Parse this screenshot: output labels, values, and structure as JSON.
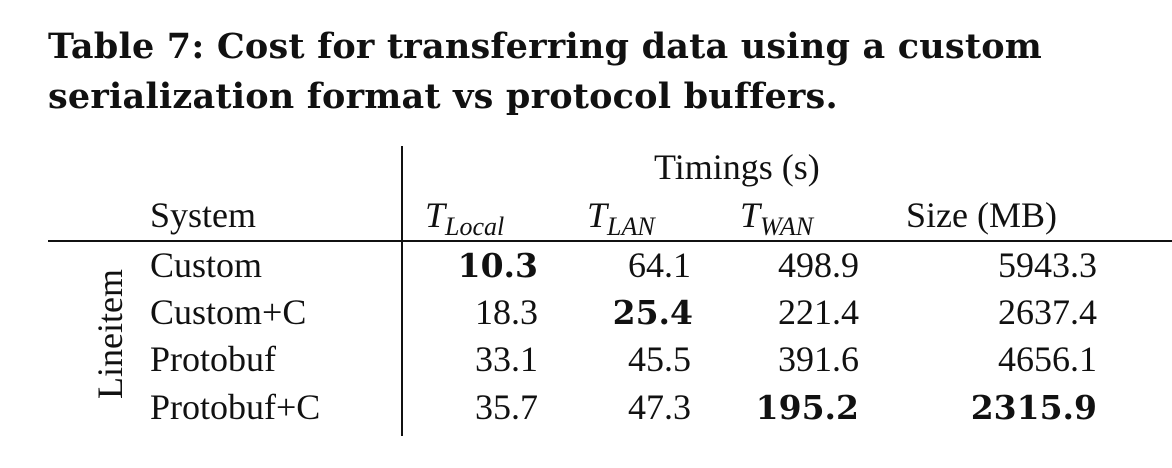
{
  "caption": "Table 7: Cost for transferring data using a custom serialization format vs protocol buffers.",
  "group_header": "Timings (s)",
  "row_group_label": "Lineitem",
  "headers": {
    "system": "System",
    "t_local": {
      "base": "T",
      "sub": "Local"
    },
    "t_lan": {
      "base": "T",
      "sub": "LAN"
    },
    "t_wan": {
      "base": "T",
      "sub": "WAN"
    },
    "size": "Size (MB)"
  },
  "rows": [
    {
      "system": "Custom",
      "t_local": "10.3",
      "t_lan": "64.1",
      "t_wan": "498.9",
      "size": "5943.3"
    },
    {
      "system": "Custom+C",
      "t_local": "18.3",
      "t_lan": "25.4",
      "t_wan": "221.4",
      "size": "2637.4"
    },
    {
      "system": "Protobuf",
      "t_local": "33.1",
      "t_lan": "45.5",
      "t_wan": "391.6",
      "size": "4656.1"
    },
    {
      "system": "Protobuf+C",
      "t_local": "35.7",
      "t_lan": "47.3",
      "t_wan": "195.2",
      "size": "2315.9"
    }
  ],
  "bold_cells": [
    "0.t_local",
    "1.t_lan",
    "3.t_wan",
    "3.size"
  ]
}
